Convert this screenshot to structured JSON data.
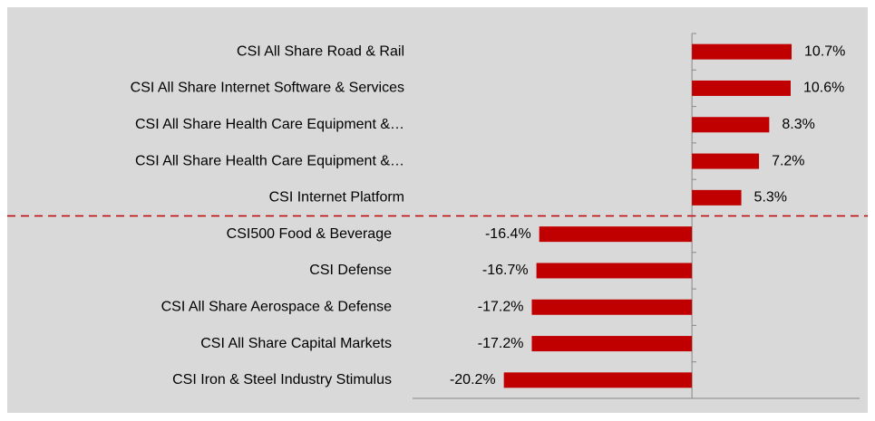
{
  "chart_data": {
    "type": "hbar",
    "categories": [
      "CSI All Share Road & Rail",
      "CSI All Share Internet Software & Services",
      "CSI All Share Health Care Equipment &…",
      "CSI All Share Health Care Equipment &…",
      "CSI Internet Platform",
      "CSI500 Food & Beverage",
      "CSI Defense",
      "CSI All Share Aerospace & Defense",
      "CSI All Share Capital Markets",
      "CSI Iron & Steel Industry Stimulus"
    ],
    "values": [
      10.7,
      10.6,
      8.3,
      7.2,
      5.3,
      -16.4,
      -16.7,
      -17.2,
      -17.2,
      -20.2
    ],
    "value_labels": [
      "10.7%",
      "10.6%",
      "8.3%",
      "7.2%",
      "5.3%",
      "-16.4%",
      "-16.7%",
      "-17.2%",
      "-17.2%",
      "-20.2%"
    ],
    "color": "#c00000",
    "xlim": [
      -30,
      18
    ]
  }
}
